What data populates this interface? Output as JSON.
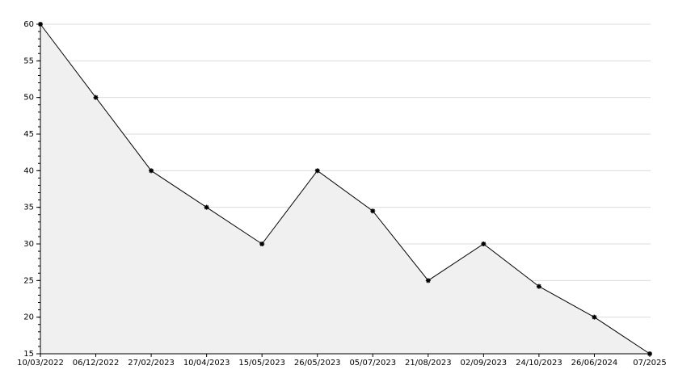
{
  "chart_data": {
    "type": "area",
    "categories": [
      "10/03/2022",
      "06/12/2022",
      "27/02/2023",
      "10/04/2023",
      "15/05/2023",
      "26/05/2023",
      "05/07/2023",
      "21/08/2023",
      "02/09/2023",
      "24/10/2023",
      "26/06/2024",
      "07/2025"
    ],
    "values": [
      60,
      50,
      40,
      35,
      30,
      40,
      34.5,
      25,
      30,
      24.2,
      20,
      15
    ],
    "color": "#000000",
    "fill": "#f0f0f0",
    "ylim": [
      15,
      60
    ],
    "yticks": [
      15,
      20,
      25,
      30,
      35,
      40,
      45,
      50,
      55,
      60
    ],
    "grid": true
  }
}
